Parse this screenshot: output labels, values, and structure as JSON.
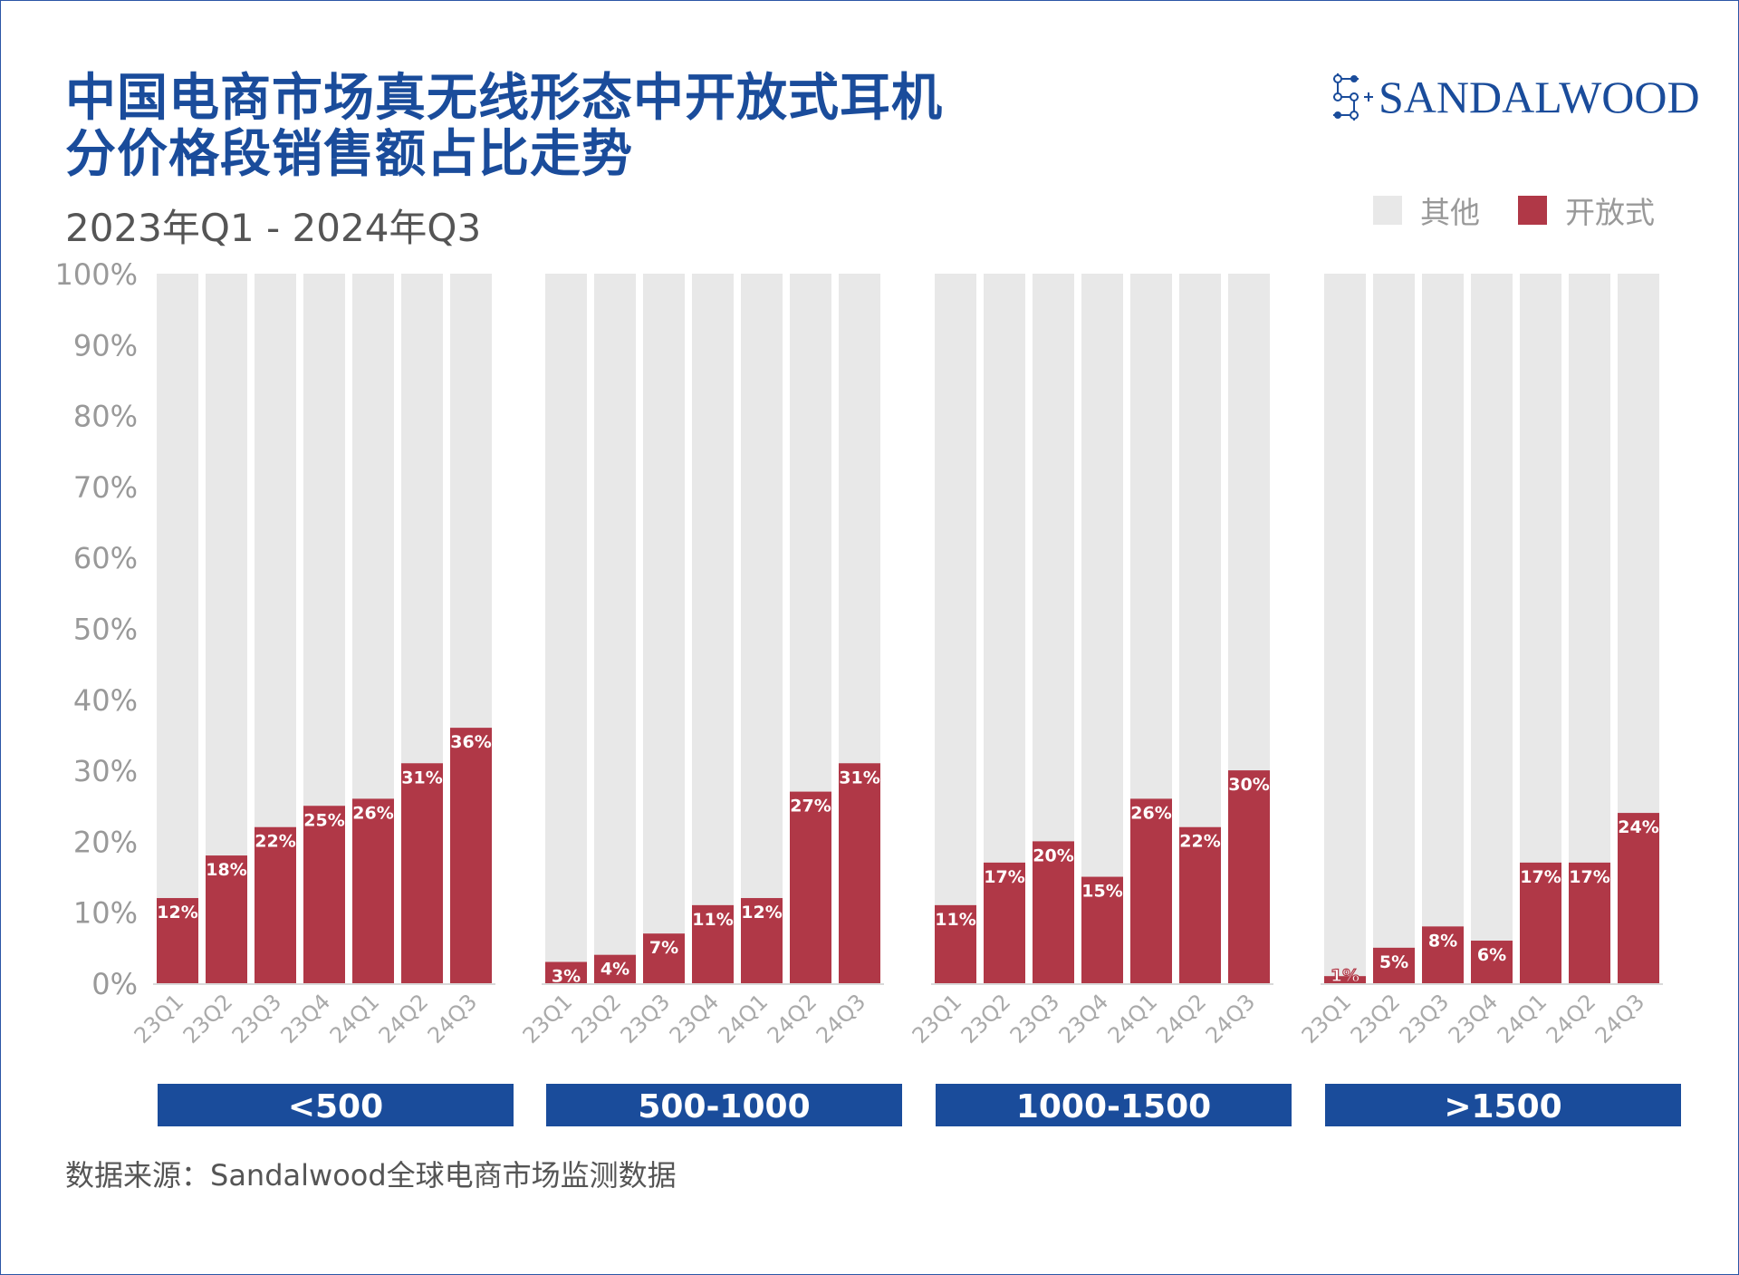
{
  "title_line1": "中国电商市场真无线形态中开放式耳机",
  "title_line2": "分价格段销售额占比走势",
  "subtitle": "2023年Q1 - 2024年Q3",
  "logo_text": "SANDALWOOD",
  "source": "数据来源：Sandalwood全球电商市场监测数据",
  "colors": {
    "title": "#1a4c9b",
    "open": "#b03847",
    "other": "#e8e8e8",
    "group_label_bg": "#1a4c9b"
  },
  "chart_data": {
    "type": "bar",
    "stacked": true,
    "ylim": [
      0,
      100
    ],
    "yticks": [
      "0%",
      "10%",
      "20%",
      "30%",
      "40%",
      "50%",
      "60%",
      "70%",
      "80%",
      "90%",
      "100%"
    ],
    "legend": {
      "position": "top-right",
      "entries": [
        "其他",
        "开放式"
      ]
    },
    "categories": [
      "23Q1",
      "23Q2",
      "23Q3",
      "23Q4",
      "24Q1",
      "24Q2",
      "24Q3"
    ],
    "groups": [
      {
        "label": "<500",
        "values": [
          12,
          18,
          22,
          25,
          26,
          31,
          36
        ]
      },
      {
        "label": "500-1000",
        "values": [
          3,
          4,
          7,
          11,
          12,
          27,
          31
        ]
      },
      {
        "label": "1000-1500",
        "values": [
          11,
          17,
          20,
          15,
          26,
          22,
          30
        ]
      },
      {
        "label": ">1500",
        "values": [
          1,
          5,
          8,
          6,
          17,
          17,
          24
        ]
      }
    ],
    "series": [
      {
        "name": "开放式"
      },
      {
        "name": "其他"
      }
    ]
  }
}
